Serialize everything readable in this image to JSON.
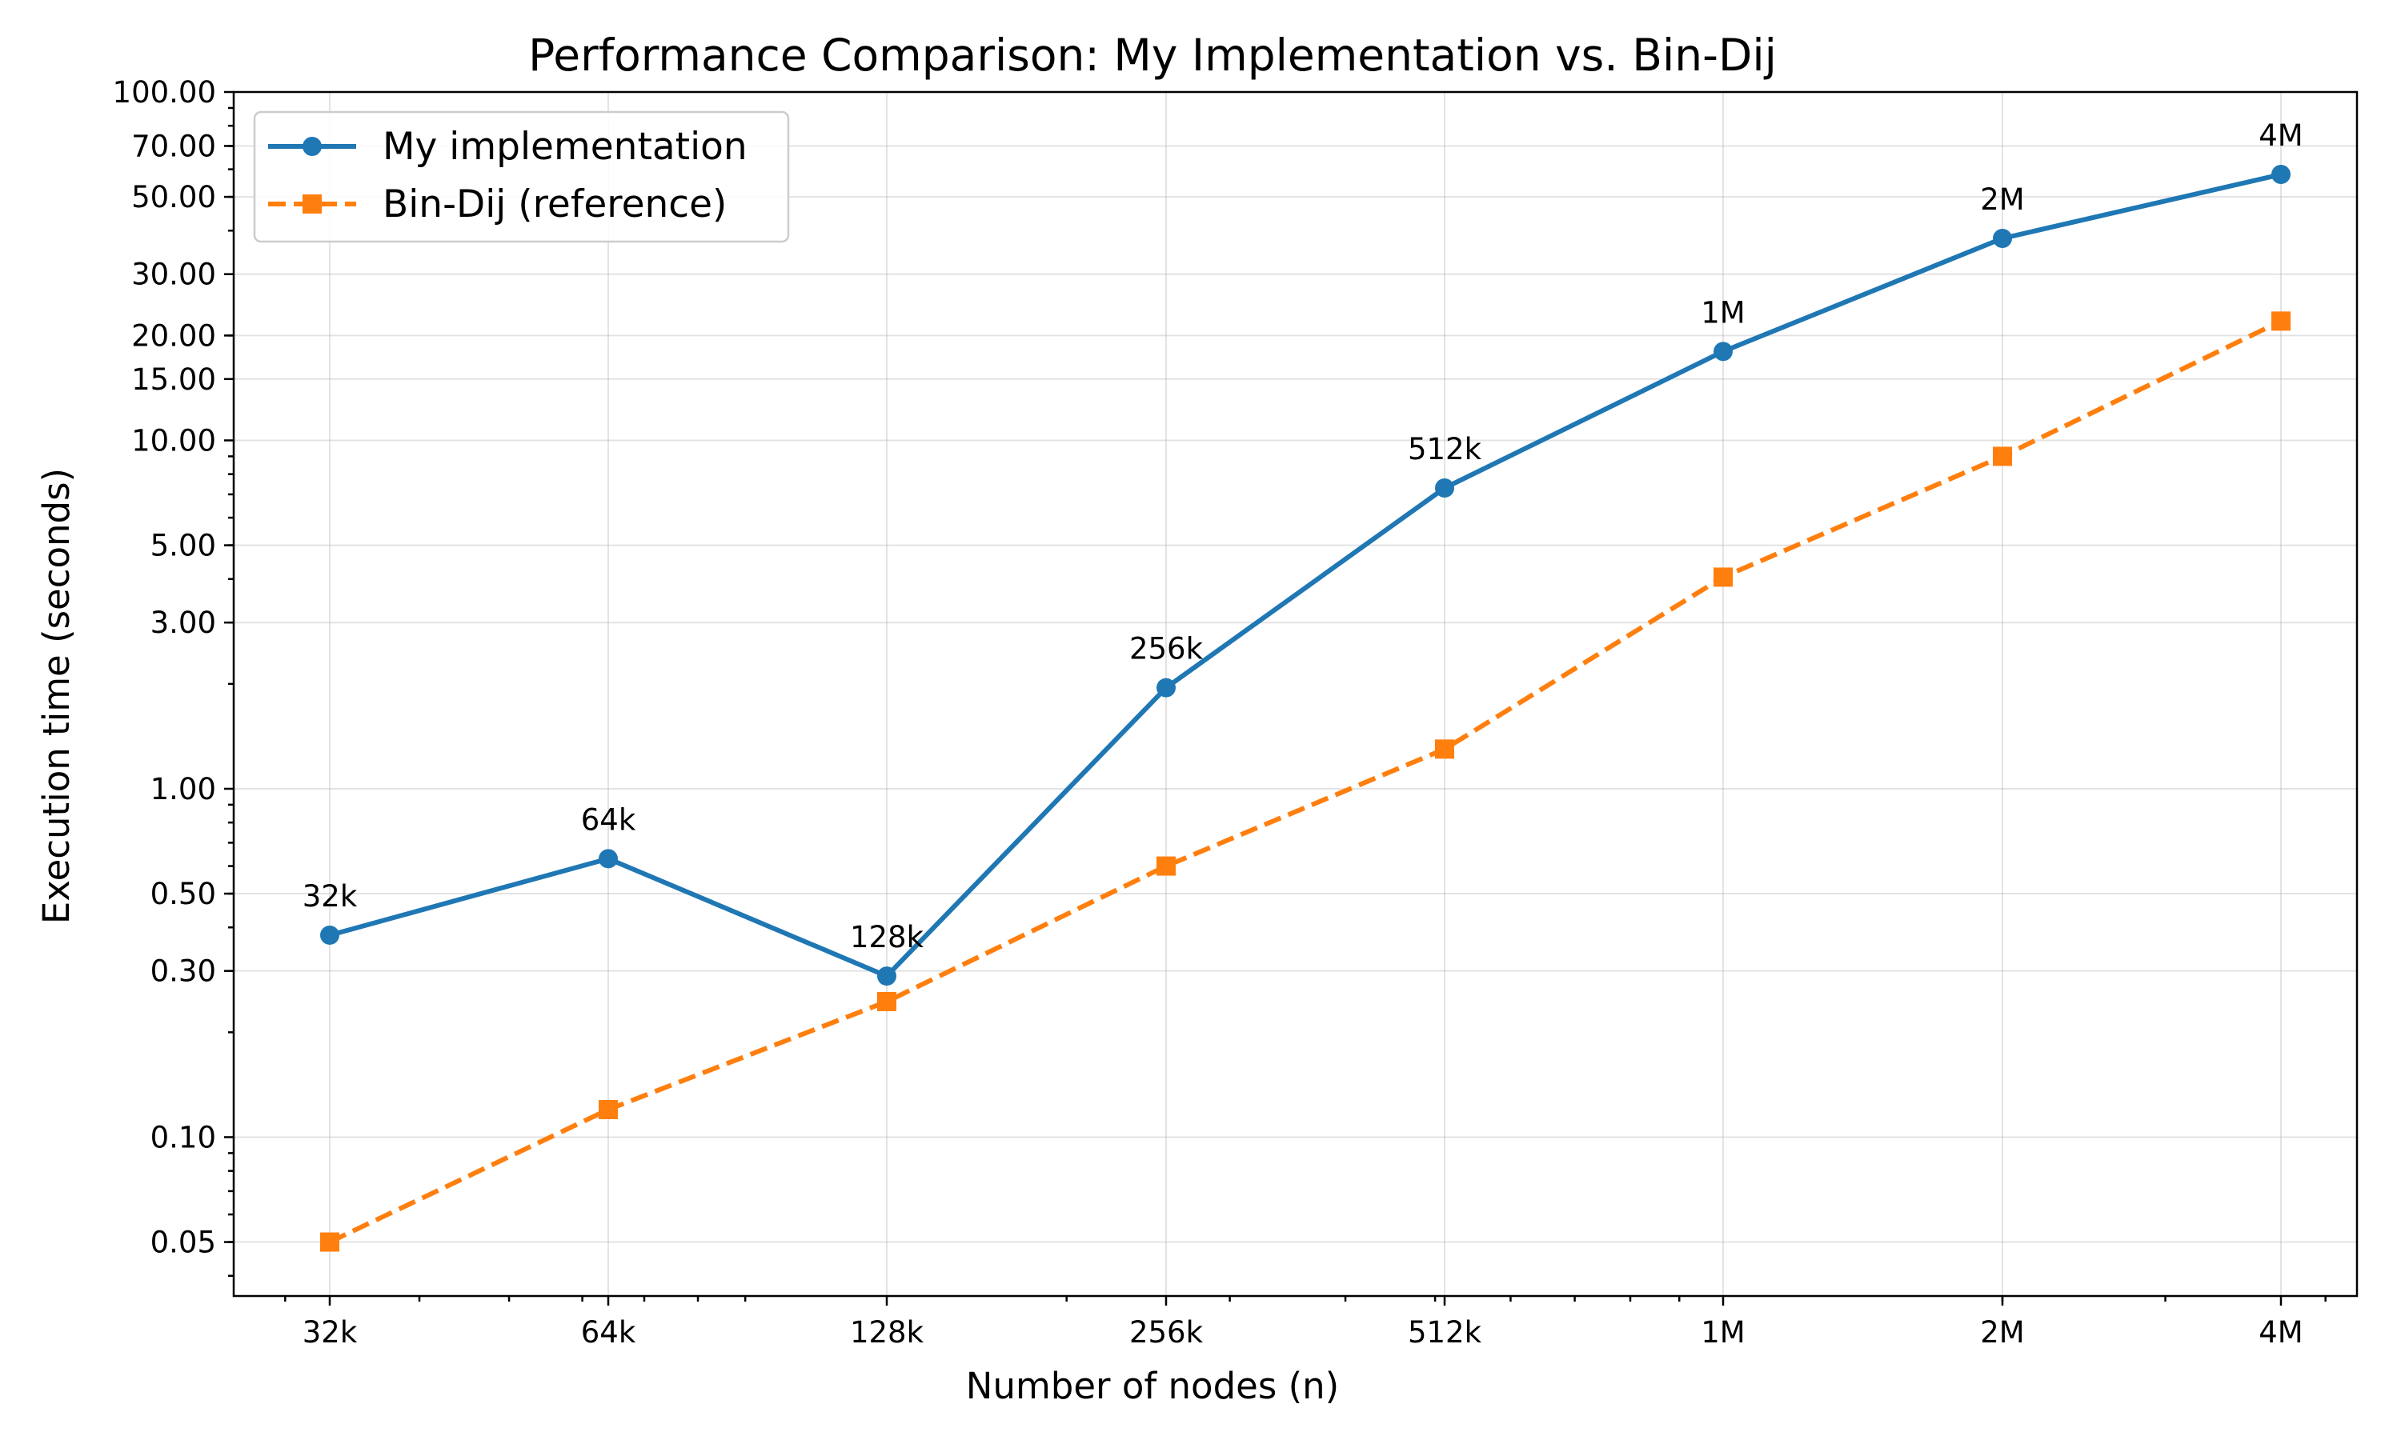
{
  "chart_data": {
    "type": "line",
    "title": "Performance Comparison: My Implementation vs. Bin-Dij",
    "xlabel": "Number of nodes (n)",
    "ylabel": "Execution time (seconds)",
    "x": [
      32000,
      64000,
      128000,
      256000,
      512000,
      1000000,
      2000000,
      4000000
    ],
    "x_tick_labels": [
      "32k",
      "64k",
      "128k",
      "256k",
      "512k",
      "1M",
      "2M",
      "4M"
    ],
    "x_scale": "log",
    "y_scale": "log",
    "ylim": [
      0.035,
      100
    ],
    "y_ticks": [
      0.05,
      0.1,
      0.3,
      0.5,
      1,
      3,
      5,
      10,
      15,
      20,
      30,
      50,
      70,
      100
    ],
    "y_tick_labels": [
      "0.05",
      "0.10",
      "0.30",
      "0.50",
      "1.00",
      "3.00",
      "5.00",
      "10.00",
      "15.00",
      "20.00",
      "30.00",
      "50.00",
      "70.00",
      "100.00"
    ],
    "grid": true,
    "legend_position": "top-left",
    "series": [
      {
        "name": "My implementation",
        "values": [
          0.38,
          0.63,
          0.29,
          1.95,
          7.3,
          18.0,
          38.0,
          58.0
        ],
        "point_labels": [
          "32k",
          "64k",
          "128k",
          "256k",
          "512k",
          "1M",
          "2M",
          "4M"
        ],
        "color": "#1f77b4",
        "line_style": "solid",
        "marker": "circle"
      },
      {
        "name": "Bin-Dij (reference)",
        "values": [
          0.05,
          0.12,
          0.245,
          0.6,
          1.3,
          4.05,
          9.0,
          22.0
        ],
        "color": "#ff7f0e",
        "line_style": "dashed",
        "marker": "square"
      }
    ]
  }
}
